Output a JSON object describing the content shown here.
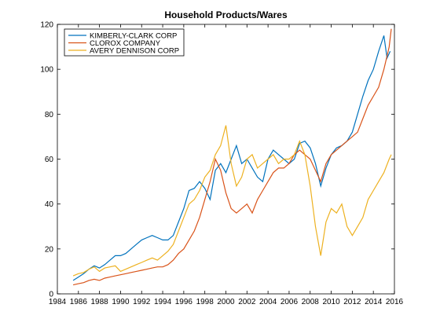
{
  "chart_data": {
    "type": "line",
    "title": "Household Products/Wares",
    "xlabel": "",
    "ylabel": "",
    "xlim": [
      1984,
      2016
    ],
    "ylim": [
      0,
      120
    ],
    "xticks": [
      "1984",
      "1986",
      "1988",
      "1990",
      "1992",
      "1994",
      "1996",
      "1998",
      "2000",
      "2002",
      "2004",
      "2006",
      "2008",
      "2010",
      "2012",
      "2014",
      "2016"
    ],
    "yticks": [
      "0",
      "20",
      "40",
      "60",
      "80",
      "100",
      "120"
    ],
    "grid": false,
    "legend_position": "top-left",
    "series": [
      {
        "name": "KIMBERLY-CLARK CORP",
        "color": "#0072bd",
        "points": [
          [
            1985.5,
            6
          ],
          [
            1986,
            7.5
          ],
          [
            1986.5,
            9
          ],
          [
            1987,
            11
          ],
          [
            1987.5,
            12.5
          ],
          [
            1988,
            11.5
          ],
          [
            1988.5,
            13
          ],
          [
            1989,
            15
          ],
          [
            1989.5,
            17
          ],
          [
            1990,
            17
          ],
          [
            1990.5,
            18
          ],
          [
            1991,
            20
          ],
          [
            1991.5,
            22
          ],
          [
            1992,
            24
          ],
          [
            1992.5,
            25
          ],
          [
            1993,
            26
          ],
          [
            1993.5,
            25
          ],
          [
            1994,
            24
          ],
          [
            1994.5,
            24
          ],
          [
            1995,
            26
          ],
          [
            1995.5,
            32
          ],
          [
            1996,
            38
          ],
          [
            1996.5,
            46
          ],
          [
            1997,
            47
          ],
          [
            1997.5,
            50
          ],
          [
            1998,
            47
          ],
          [
            1998.5,
            42
          ],
          [
            1999,
            55
          ],
          [
            1999.5,
            58
          ],
          [
            2000,
            54
          ],
          [
            2000.5,
            60
          ],
          [
            2001,
            66
          ],
          [
            2001.5,
            58
          ],
          [
            2002,
            60
          ],
          [
            2002.5,
            56
          ],
          [
            2003,
            52
          ],
          [
            2003.5,
            50
          ],
          [
            2004,
            60
          ],
          [
            2004.5,
            64
          ],
          [
            2005,
            62
          ],
          [
            2005.5,
            60
          ],
          [
            2006,
            58
          ],
          [
            2006.5,
            60
          ],
          [
            2007,
            67
          ],
          [
            2007.5,
            68
          ],
          [
            2008,
            65
          ],
          [
            2008.5,
            58
          ],
          [
            2009,
            48
          ],
          [
            2009.5,
            56
          ],
          [
            2010,
            62
          ],
          [
            2010.5,
            65
          ],
          [
            2011,
            66
          ],
          [
            2011.5,
            68
          ],
          [
            2012,
            72
          ],
          [
            2012.5,
            80
          ],
          [
            2013,
            88
          ],
          [
            2013.5,
            95
          ],
          [
            2014,
            100
          ],
          [
            2014.5,
            108
          ],
          [
            2015,
            115
          ],
          [
            2015.3,
            105
          ],
          [
            2015.6,
            108
          ]
        ]
      },
      {
        "name": "CLOROX COMPANY",
        "color": "#d95319",
        "points": [
          [
            1985.5,
            4
          ],
          [
            1986,
            4.5
          ],
          [
            1986.5,
            5
          ],
          [
            1987,
            6
          ],
          [
            1987.5,
            6.5
          ],
          [
            1988,
            6
          ],
          [
            1988.5,
            7
          ],
          [
            1989,
            7.5
          ],
          [
            1989.5,
            8
          ],
          [
            1990,
            8.5
          ],
          [
            1990.5,
            9
          ],
          [
            1991,
            9.5
          ],
          [
            1991.5,
            10
          ],
          [
            1992,
            10.5
          ],
          [
            1992.5,
            11
          ],
          [
            1993,
            11.5
          ],
          [
            1993.5,
            12
          ],
          [
            1994,
            12
          ],
          [
            1994.5,
            13
          ],
          [
            1995,
            15
          ],
          [
            1995.5,
            18
          ],
          [
            1996,
            20
          ],
          [
            1996.5,
            24
          ],
          [
            1997,
            28
          ],
          [
            1997.5,
            34
          ],
          [
            1998,
            42
          ],
          [
            1998.5,
            50
          ],
          [
            1999,
            60
          ],
          [
            1999.5,
            55
          ],
          [
            2000,
            45
          ],
          [
            2000.5,
            38
          ],
          [
            2001,
            36
          ],
          [
            2001.5,
            38
          ],
          [
            2002,
            40
          ],
          [
            2002.5,
            36
          ],
          [
            2003,
            42
          ],
          [
            2003.5,
            46
          ],
          [
            2004,
            50
          ],
          [
            2004.5,
            54
          ],
          [
            2005,
            56
          ],
          [
            2005.5,
            56
          ],
          [
            2006,
            58
          ],
          [
            2006.5,
            62
          ],
          [
            2007,
            64
          ],
          [
            2007.5,
            62
          ],
          [
            2008,
            60
          ],
          [
            2008.5,
            55
          ],
          [
            2009,
            50
          ],
          [
            2009.5,
            58
          ],
          [
            2010,
            62
          ],
          [
            2010.5,
            64
          ],
          [
            2011,
            66
          ],
          [
            2011.5,
            68
          ],
          [
            2012,
            70
          ],
          [
            2012.5,
            72
          ],
          [
            2013,
            78
          ],
          [
            2013.5,
            84
          ],
          [
            2014,
            88
          ],
          [
            2014.5,
            92
          ],
          [
            2015,
            100
          ],
          [
            2015.5,
            110
          ],
          [
            2015.7,
            118
          ]
        ]
      },
      {
        "name": "AVERY DENNISON CORP",
        "color": "#edb120",
        "points": [
          [
            1985.5,
            8
          ],
          [
            1986,
            9
          ],
          [
            1986.5,
            9.5
          ],
          [
            1987,
            11
          ],
          [
            1987.5,
            12
          ],
          [
            1988,
            10
          ],
          [
            1988.5,
            11.5
          ],
          [
            1989,
            12
          ],
          [
            1989.5,
            12.5
          ],
          [
            1990,
            10
          ],
          [
            1990.5,
            11
          ],
          [
            1991,
            12
          ],
          [
            1991.5,
            13
          ],
          [
            1992,
            14
          ],
          [
            1992.5,
            15
          ],
          [
            1993,
            16
          ],
          [
            1993.5,
            15
          ],
          [
            1994,
            17
          ],
          [
            1994.5,
            19
          ],
          [
            1995,
            22
          ],
          [
            1995.5,
            28
          ],
          [
            1996,
            34
          ],
          [
            1996.5,
            40
          ],
          [
            1997,
            42
          ],
          [
            1997.5,
            46
          ],
          [
            1998,
            52
          ],
          [
            1998.5,
            55
          ],
          [
            1999,
            62
          ],
          [
            1999.5,
            66
          ],
          [
            2000,
            75
          ],
          [
            2000.5,
            58
          ],
          [
            2001,
            48
          ],
          [
            2001.5,
            52
          ],
          [
            2002,
            60
          ],
          [
            2002.5,
            62
          ],
          [
            2003,
            56
          ],
          [
            2003.5,
            58
          ],
          [
            2004,
            60
          ],
          [
            2004.5,
            62
          ],
          [
            2005,
            58
          ],
          [
            2005.5,
            60
          ],
          [
            2006,
            60
          ],
          [
            2006.5,
            62
          ],
          [
            2007,
            68
          ],
          [
            2007.5,
            62
          ],
          [
            2008,
            48
          ],
          [
            2008.5,
            30
          ],
          [
            2009,
            17
          ],
          [
            2009.5,
            32
          ],
          [
            2010,
            38
          ],
          [
            2010.5,
            36
          ],
          [
            2011,
            40
          ],
          [
            2011.5,
            30
          ],
          [
            2012,
            26
          ],
          [
            2012.5,
            30
          ],
          [
            2013,
            34
          ],
          [
            2013.5,
            42
          ],
          [
            2014,
            46
          ],
          [
            2014.5,
            50
          ],
          [
            2015,
            54
          ],
          [
            2015.5,
            60
          ],
          [
            2015.7,
            62
          ]
        ]
      }
    ]
  }
}
